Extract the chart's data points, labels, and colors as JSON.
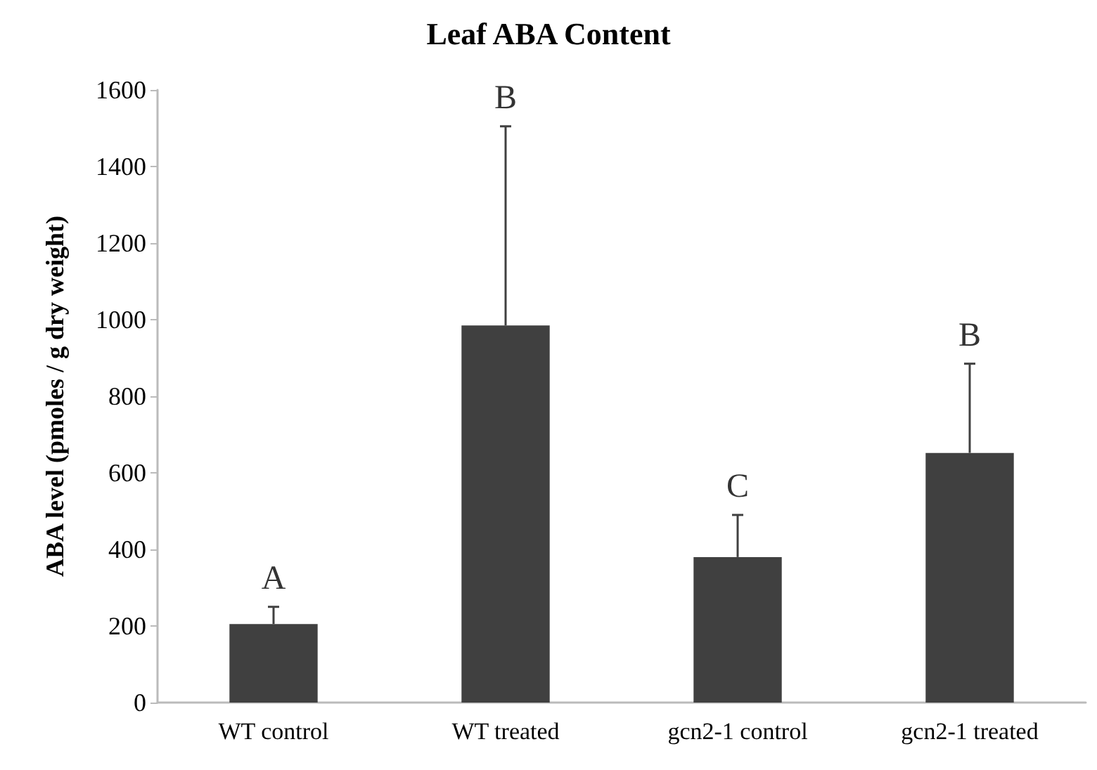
{
  "chart_data": {
    "type": "bar",
    "title": "Leaf ABA Content",
    "ylabel": "ABA level (pmoles / g dry weight)",
    "categories": [
      "WT control",
      "WT treated",
      "gcn2-1 control",
      "gcn2-1 treated"
    ],
    "values": [
      205,
      985,
      380,
      652
    ],
    "color": "#404040",
    "errors": [
      [
        205,
        250
      ],
      [
        985,
        1505
      ],
      [
        380,
        490
      ],
      [
        652,
        885
      ]
    ],
    "ylim": [
      0,
      1600
    ],
    "yticks": [
      0,
      200,
      400,
      600,
      800,
      1000,
      1200,
      1400,
      1600
    ],
    "grid": false,
    "annotations": [
      "A",
      "B",
      "C",
      "B"
    ]
  }
}
